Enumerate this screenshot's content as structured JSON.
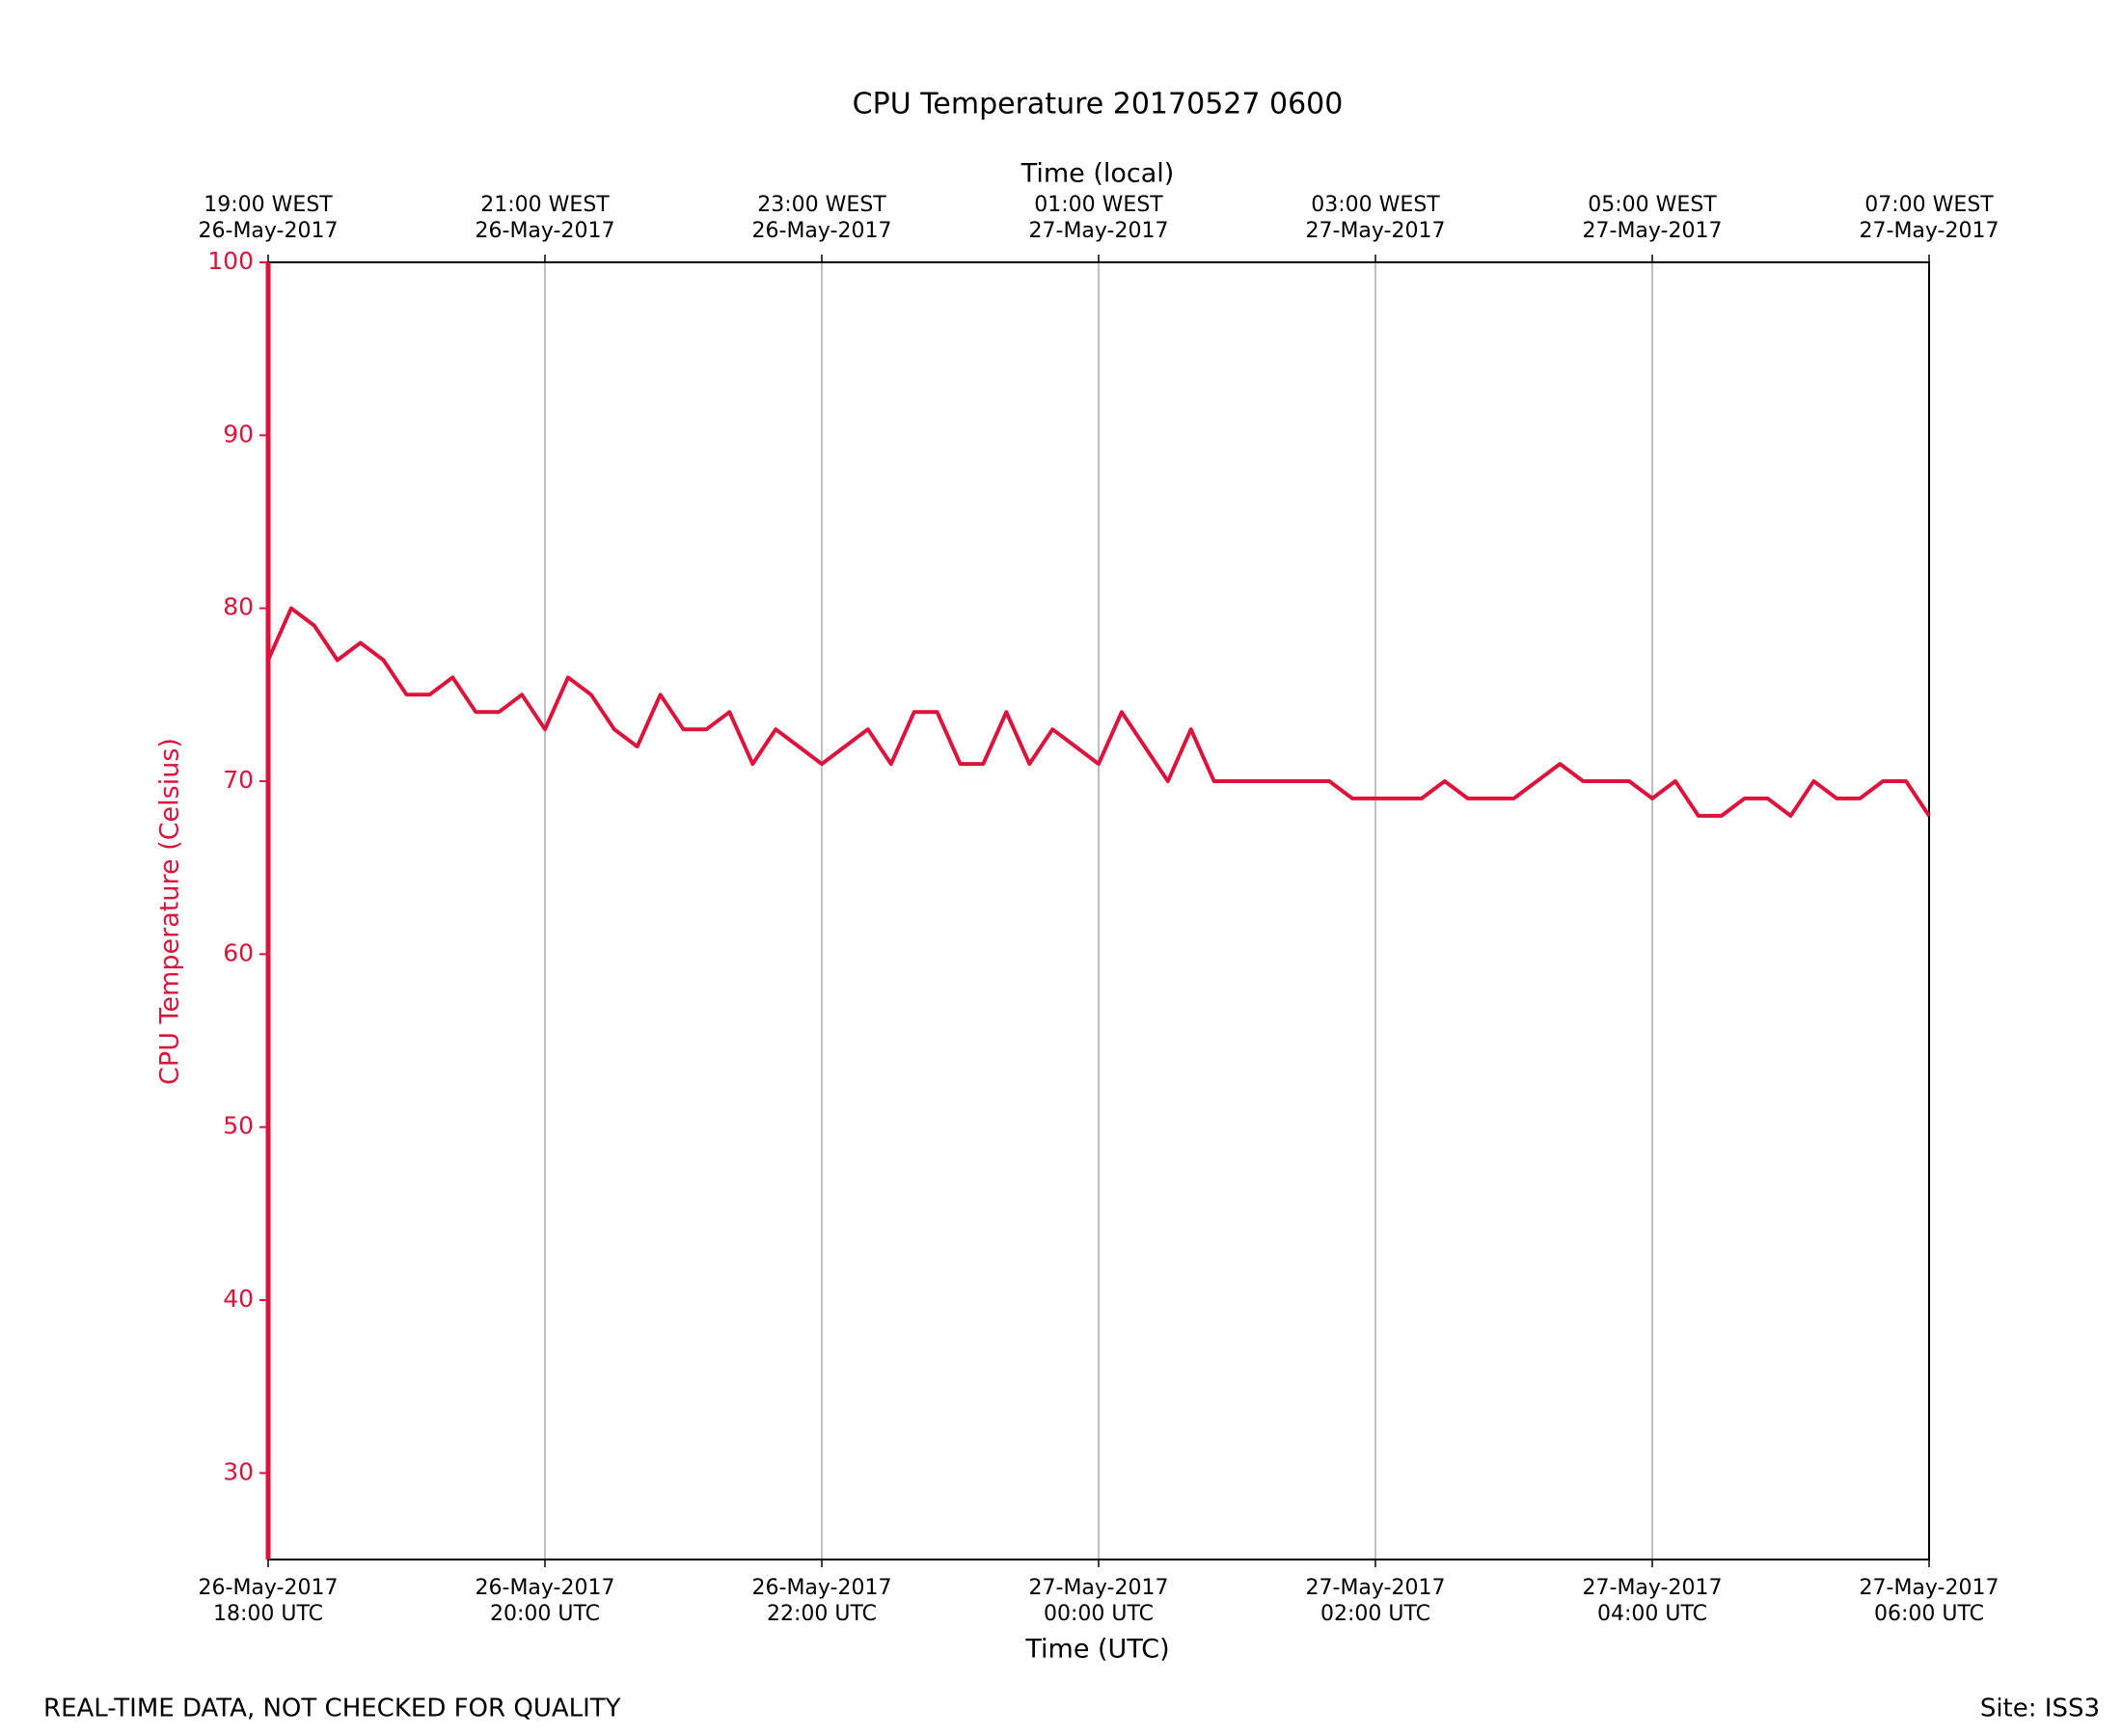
{
  "chart_data": {
    "type": "line",
    "title": "CPU Temperature 20170527 0600",
    "xlabel": "Time (UTC)",
    "x2label": "Time (local)",
    "ylabel": "CPU Temperature (Celsius)",
    "footer_left": "REAL-TIME DATA, NOT CHECKED FOR QUALITY",
    "footer_right": "Site: ISS3",
    "xlim": [
      "2017-05-26T18:00",
      "2017-05-27T06:00"
    ],
    "xticks": [
      {
        "value": "2017-05-26T18:00",
        "label": "26-May-2017\n18:00 UTC"
      },
      {
        "value": "2017-05-26T20:00",
        "label": "26-May-2017\n20:00 UTC"
      },
      {
        "value": "2017-05-26T22:00",
        "label": "26-May-2017\n22:00 UTC"
      },
      {
        "value": "2017-05-27T00:00",
        "label": "27-May-2017\n00:00 UTC"
      },
      {
        "value": "2017-05-27T02:00",
        "label": "27-May-2017\n02:00 UTC"
      },
      {
        "value": "2017-05-27T04:00",
        "label": "27-May-2017\n04:00 UTC"
      },
      {
        "value": "2017-05-27T06:00",
        "label": "27-May-2017\n06:00 UTC"
      }
    ],
    "x2ticks": [
      {
        "value": "2017-05-26T18:00",
        "label": "19:00 WEST\n26-May-2017"
      },
      {
        "value": "2017-05-26T20:00",
        "label": "21:00 WEST\n26-May-2017"
      },
      {
        "value": "2017-05-26T22:00",
        "label": "23:00 WEST\n26-May-2017"
      },
      {
        "value": "2017-05-27T00:00",
        "label": "01:00 WEST\n27-May-2017"
      },
      {
        "value": "2017-05-27T02:00",
        "label": "03:00 WEST\n27-May-2017"
      },
      {
        "value": "2017-05-27T04:00",
        "label": "05:00 WEST\n27-May-2017"
      },
      {
        "value": "2017-05-27T06:00",
        "label": "07:00 WEST\n27-May-2017"
      }
    ],
    "ylim": [
      25,
      100
    ],
    "yticks": [
      30,
      40,
      50,
      60,
      70,
      80,
      90,
      100
    ],
    "grid": true,
    "color": "#dc143c",
    "x": [
      "2017-05-26T18:00",
      "2017-05-26T18:10",
      "2017-05-26T18:20",
      "2017-05-26T18:30",
      "2017-05-26T18:40",
      "2017-05-26T18:50",
      "2017-05-26T19:00",
      "2017-05-26T19:10",
      "2017-05-26T19:20",
      "2017-05-26T19:30",
      "2017-05-26T19:40",
      "2017-05-26T19:50",
      "2017-05-26T20:00",
      "2017-05-26T20:10",
      "2017-05-26T20:20",
      "2017-05-26T20:30",
      "2017-05-26T20:40",
      "2017-05-26T20:50",
      "2017-05-26T21:00",
      "2017-05-26T21:10",
      "2017-05-26T21:20",
      "2017-05-26T21:30",
      "2017-05-26T21:40",
      "2017-05-26T21:50",
      "2017-05-26T22:00",
      "2017-05-26T22:10",
      "2017-05-26T22:20",
      "2017-05-26T22:30",
      "2017-05-26T22:40",
      "2017-05-26T22:50",
      "2017-05-26T23:00",
      "2017-05-26T23:10",
      "2017-05-26T23:20",
      "2017-05-26T23:30",
      "2017-05-26T23:40",
      "2017-05-26T23:50",
      "2017-05-27T00:00",
      "2017-05-27T00:10",
      "2017-05-27T00:20",
      "2017-05-27T00:30",
      "2017-05-27T00:40",
      "2017-05-27T00:50",
      "2017-05-27T01:00",
      "2017-05-27T01:10",
      "2017-05-27T01:20",
      "2017-05-27T01:30",
      "2017-05-27T01:40",
      "2017-05-27T01:50",
      "2017-05-27T02:00",
      "2017-05-27T02:10",
      "2017-05-27T02:20",
      "2017-05-27T02:30",
      "2017-05-27T02:40",
      "2017-05-27T02:50",
      "2017-05-27T03:00",
      "2017-05-27T03:10",
      "2017-05-27T03:20",
      "2017-05-27T03:30",
      "2017-05-27T03:40",
      "2017-05-27T03:50",
      "2017-05-27T04:00",
      "2017-05-27T04:10",
      "2017-05-27T04:20",
      "2017-05-27T04:30",
      "2017-05-27T04:40",
      "2017-05-27T04:50",
      "2017-05-27T05:00",
      "2017-05-27T05:10",
      "2017-05-27T05:20",
      "2017-05-27T05:30",
      "2017-05-27T05:40",
      "2017-05-27T05:50",
      "2017-05-27T06:00"
    ],
    "values": [
      77,
      80,
      79,
      77,
      78,
      77,
      75,
      75,
      76,
      74,
      74,
      75,
      73,
      76,
      75,
      73,
      72,
      75,
      73,
      73,
      74,
      71,
      73,
      72,
      71,
      72,
      73,
      71,
      74,
      74,
      71,
      71,
      74,
      71,
      73,
      72,
      71,
      74,
      72,
      70,
      73,
      70,
      70,
      70,
      70,
      70,
      70,
      69,
      69,
      69,
      69,
      70,
      69,
      69,
      69,
      70,
      71,
      70,
      70,
      70,
      69,
      70,
      68,
      68,
      69,
      69,
      68,
      70,
      69,
      69,
      70,
      70,
      68
    ]
  }
}
